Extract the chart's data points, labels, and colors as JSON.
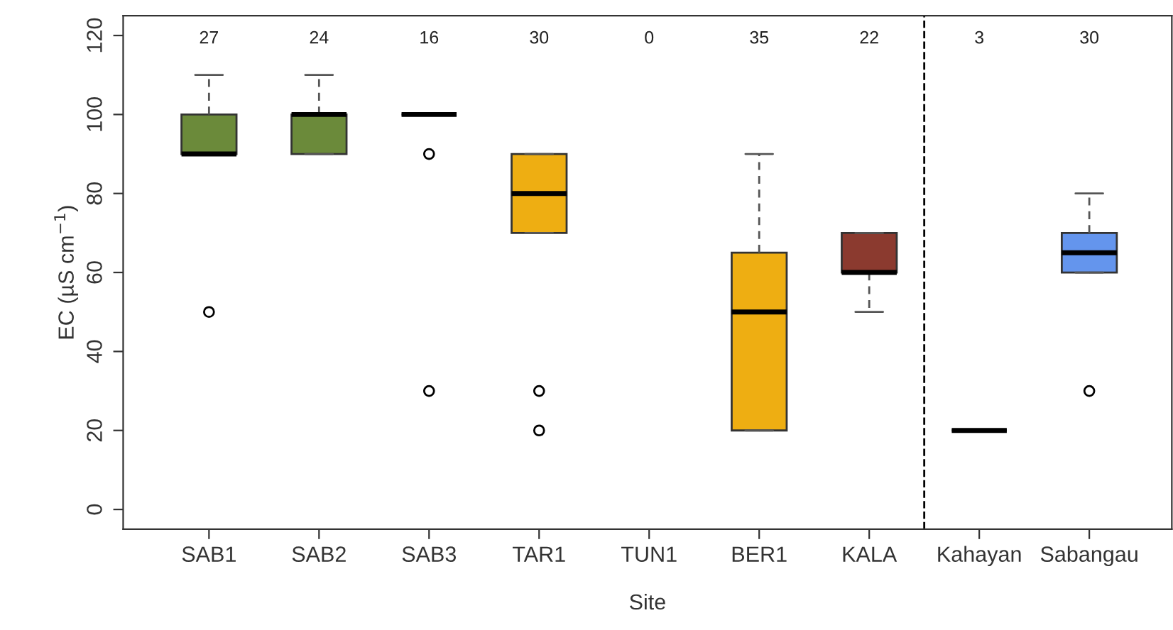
{
  "chart_data": {
    "type": "box",
    "xlabel": "Site",
    "ylabel": "EC (µS cm$^{−1}$)",
    "categories": [
      "SAB1",
      "SAB2",
      "SAB3",
      "TAR1",
      "TUN1",
      "BER1",
      "KALA",
      "Kahayan",
      "Sabangau"
    ],
    "boxes": [
      {
        "low": 90,
        "q1": 90,
        "median": 90,
        "q3": 100,
        "high": 110,
        "outliers": [
          50
        ]
      },
      {
        "low": 90,
        "q1": 90,
        "median": 100,
        "q3": 100,
        "high": 110
      },
      {
        "low": 100,
        "q1": 100,
        "median": 100,
        "q3": 100,
        "high": 100,
        "outliers": [
          90,
          30
        ]
      },
      {
        "low": 70,
        "q1": 70,
        "median": 80,
        "q3": 90,
        "high": 90,
        "outliers": [
          30,
          20
        ]
      },
      null,
      {
        "low": 20,
        "q1": 20,
        "median": 50,
        "q3": 65,
        "high": 90
      },
      {
        "low": 50,
        "q1": 60,
        "median": 60,
        "q3": 70,
        "high": 70
      },
      {
        "low": 20,
        "q1": 20,
        "median": 20,
        "q3": 20,
        "high": 20
      },
      {
        "low": 60,
        "q1": 60,
        "median": 65,
        "q3": 70,
        "high": 80,
        "outliers": [
          30
        ]
      }
    ],
    "colors": [
      "#6b8a3a",
      "#6b8a3a",
      null,
      "#eeae12",
      null,
      "#eeae12",
      "#8b3a2f",
      null,
      "#6495ed"
    ],
    "ylim": [
      -5,
      125
    ],
    "yticks": [
      0,
      20,
      40,
      60,
      80,
      100,
      120
    ],
    "grid": false,
    "annotations": [
      "27",
      "24",
      "16",
      "30",
      "0",
      "35",
      "22",
      "3",
      "30"
    ]
  }
}
